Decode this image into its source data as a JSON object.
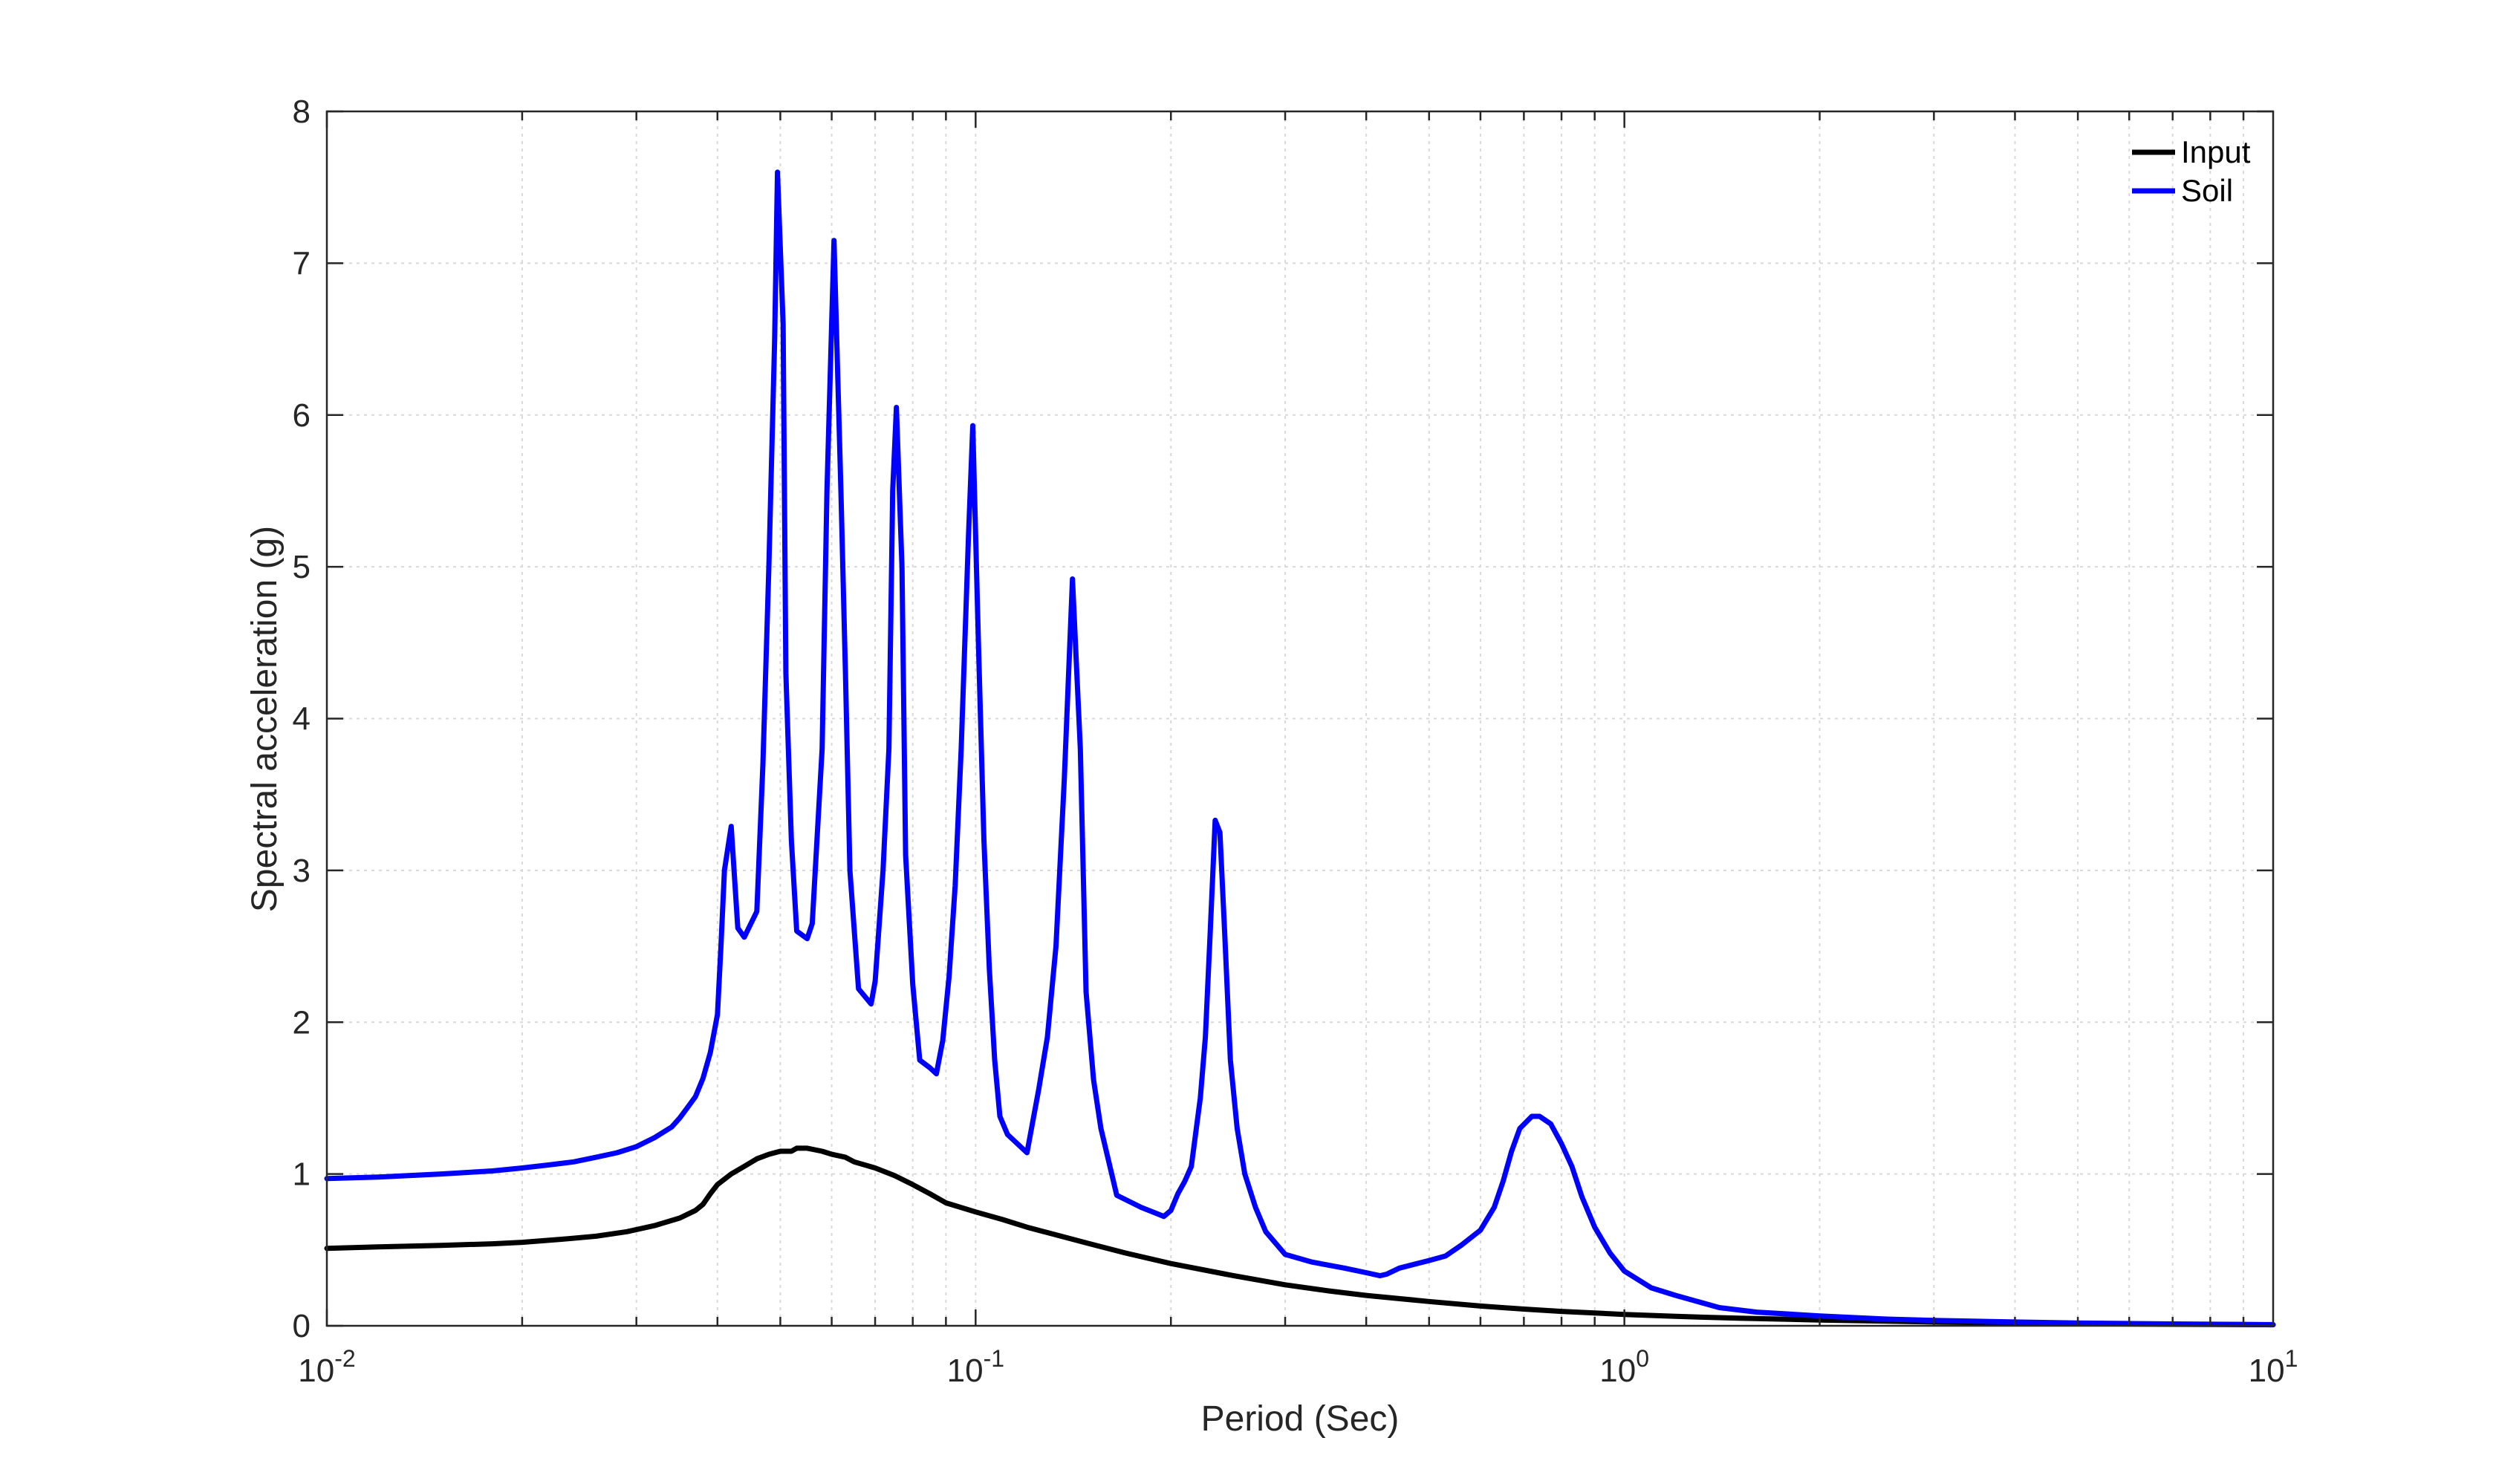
{
  "chart_data": {
    "type": "line",
    "title": "",
    "xlabel": "Period (Sec)",
    "ylabel": "Spectral acceleration (g)",
    "xscale": "log",
    "xlim": [
      0.01,
      10
    ],
    "ylim": [
      0,
      8
    ],
    "grid": true,
    "legend_position": "top-right",
    "x_ticks": [
      {
        "value": 0.01,
        "base": "10",
        "exp": "-2"
      },
      {
        "value": 0.1,
        "base": "10",
        "exp": "-1"
      },
      {
        "value": 1,
        "base": "10",
        "exp": "0"
      },
      {
        "value": 10,
        "base": "10",
        "exp": "1"
      }
    ],
    "y_ticks": [
      "0",
      "1",
      "2",
      "3",
      "4",
      "5",
      "6",
      "7",
      "8"
    ],
    "series": [
      {
        "name": "Input",
        "color": "#000000",
        "points": [
          [
            0.01,
            0.51
          ],
          [
            0.012,
            0.52
          ],
          [
            0.015,
            0.53
          ],
          [
            0.018,
            0.54
          ],
          [
            0.02,
            0.55
          ],
          [
            0.023,
            0.57
          ],
          [
            0.026,
            0.59
          ],
          [
            0.029,
            0.62
          ],
          [
            0.032,
            0.66
          ],
          [
            0.035,
            0.71
          ],
          [
            0.037,
            0.76
          ],
          [
            0.038,
            0.8
          ],
          [
            0.039,
            0.87
          ],
          [
            0.04,
            0.93
          ],
          [
            0.042,
            1.0
          ],
          [
            0.044,
            1.05
          ],
          [
            0.046,
            1.1
          ],
          [
            0.048,
            1.13
          ],
          [
            0.05,
            1.15
          ],
          [
            0.052,
            1.15
          ],
          [
            0.053,
            1.17
          ],
          [
            0.055,
            1.17
          ],
          [
            0.058,
            1.15
          ],
          [
            0.06,
            1.13
          ],
          [
            0.063,
            1.11
          ],
          [
            0.065,
            1.08
          ],
          [
            0.07,
            1.04
          ],
          [
            0.075,
            0.99
          ],
          [
            0.08,
            0.93
          ],
          [
            0.085,
            0.87
          ],
          [
            0.09,
            0.81
          ],
          [
            0.1,
            0.75
          ],
          [
            0.11,
            0.7
          ],
          [
            0.12,
            0.65
          ],
          [
            0.13,
            0.61
          ],
          [
            0.15,
            0.54
          ],
          [
            0.17,
            0.48
          ],
          [
            0.2,
            0.41
          ],
          [
            0.25,
            0.33
          ],
          [
            0.3,
            0.27
          ],
          [
            0.35,
            0.23
          ],
          [
            0.4,
            0.2
          ],
          [
            0.5,
            0.16
          ],
          [
            0.6,
            0.13
          ],
          [
            0.7,
            0.11
          ],
          [
            0.8,
            0.095
          ],
          [
            1.0,
            0.075
          ],
          [
            1.2,
            0.062
          ],
          [
            1.5,
            0.05
          ],
          [
            2.0,
            0.038
          ],
          [
            3.0,
            0.025
          ],
          [
            4.0,
            0.018
          ],
          [
            5.0,
            0.014
          ],
          [
            7.0,
            0.01
          ],
          [
            10.0,
            0.007
          ]
        ]
      },
      {
        "name": "Soil",
        "color": "#0000ff",
        "points": [
          [
            0.01,
            0.97
          ],
          [
            0.012,
            0.98
          ],
          [
            0.015,
            1.0
          ],
          [
            0.018,
            1.02
          ],
          [
            0.02,
            1.04
          ],
          [
            0.022,
            1.06
          ],
          [
            0.024,
            1.08
          ],
          [
            0.026,
            1.11
          ],
          [
            0.028,
            1.14
          ],
          [
            0.03,
            1.18
          ],
          [
            0.032,
            1.24
          ],
          [
            0.034,
            1.31
          ],
          [
            0.035,
            1.37
          ],
          [
            0.036,
            1.44
          ],
          [
            0.037,
            1.51
          ],
          [
            0.038,
            1.63
          ],
          [
            0.039,
            1.8
          ],
          [
            0.04,
            2.05
          ],
          [
            0.0405,
            2.5
          ],
          [
            0.041,
            3.0
          ],
          [
            0.042,
            3.29
          ],
          [
            0.043,
            2.62
          ],
          [
            0.044,
            2.56
          ],
          [
            0.046,
            2.73
          ],
          [
            0.047,
            3.7
          ],
          [
            0.048,
            5.0
          ],
          [
            0.049,
            6.5
          ],
          [
            0.0495,
            7.6
          ],
          [
            0.0505,
            6.6
          ],
          [
            0.051,
            4.3
          ],
          [
            0.052,
            3.2
          ],
          [
            0.053,
            2.6
          ],
          [
            0.055,
            2.55
          ],
          [
            0.056,
            2.65
          ],
          [
            0.058,
            3.8
          ],
          [
            0.059,
            5.5
          ],
          [
            0.0605,
            7.15
          ],
          [
            0.062,
            5.5
          ],
          [
            0.063,
            4.3
          ],
          [
            0.064,
            3.0
          ],
          [
            0.066,
            2.22
          ],
          [
            0.069,
            2.12
          ],
          [
            0.07,
            2.27
          ],
          [
            0.072,
            3.0
          ],
          [
            0.0735,
            3.8
          ],
          [
            0.0745,
            5.5
          ],
          [
            0.0755,
            6.05
          ],
          [
            0.077,
            5.0
          ],
          [
            0.078,
            3.1
          ],
          [
            0.08,
            2.25
          ],
          [
            0.082,
            1.75
          ],
          [
            0.085,
            1.7
          ],
          [
            0.087,
            1.66
          ],
          [
            0.089,
            1.88
          ],
          [
            0.091,
            2.3
          ],
          [
            0.093,
            2.9
          ],
          [
            0.095,
            3.8
          ],
          [
            0.0975,
            5.2
          ],
          [
            0.099,
            5.93
          ],
          [
            0.101,
            4.5
          ],
          [
            0.103,
            3.2
          ],
          [
            0.105,
            2.35
          ],
          [
            0.107,
            1.75
          ],
          [
            0.109,
            1.38
          ],
          [
            0.112,
            1.26
          ],
          [
            0.12,
            1.14
          ],
          [
            0.125,
            1.55
          ],
          [
            0.129,
            1.9
          ],
          [
            0.133,
            2.5
          ],
          [
            0.137,
            3.6
          ],
          [
            0.141,
            4.92
          ],
          [
            0.145,
            3.8
          ],
          [
            0.148,
            2.2
          ],
          [
            0.152,
            1.62
          ],
          [
            0.156,
            1.3
          ],
          [
            0.165,
            0.86
          ],
          [
            0.18,
            0.78
          ],
          [
            0.19,
            0.74
          ],
          [
            0.195,
            0.72
          ],
          [
            0.2,
            0.76
          ],
          [
            0.205,
            0.87
          ],
          [
            0.21,
            0.95
          ],
          [
            0.215,
            1.05
          ],
          [
            0.222,
            1.5
          ],
          [
            0.226,
            1.9
          ],
          [
            0.23,
            2.6
          ],
          [
            0.234,
            3.33
          ],
          [
            0.238,
            3.25
          ],
          [
            0.242,
            2.6
          ],
          [
            0.247,
            1.75
          ],
          [
            0.253,
            1.3
          ],
          [
            0.26,
            1.0
          ],
          [
            0.27,
            0.78
          ],
          [
            0.28,
            0.62
          ],
          [
            0.3,
            0.47
          ],
          [
            0.33,
            0.42
          ],
          [
            0.37,
            0.38
          ],
          [
            0.4,
            0.35
          ],
          [
            0.42,
            0.33
          ],
          [
            0.43,
            0.34
          ],
          [
            0.45,
            0.38
          ],
          [
            0.5,
            0.43
          ],
          [
            0.53,
            0.46
          ],
          [
            0.56,
            0.53
          ],
          [
            0.6,
            0.63
          ],
          [
            0.63,
            0.78
          ],
          [
            0.65,
            0.95
          ],
          [
            0.67,
            1.15
          ],
          [
            0.69,
            1.3
          ],
          [
            0.72,
            1.38
          ],
          [
            0.74,
            1.38
          ],
          [
            0.77,
            1.33
          ],
          [
            0.8,
            1.2
          ],
          [
            0.83,
            1.05
          ],
          [
            0.86,
            0.85
          ],
          [
            0.9,
            0.65
          ],
          [
            0.95,
            0.48
          ],
          [
            1.0,
            0.36
          ],
          [
            1.1,
            0.25
          ],
          [
            1.2,
            0.2
          ],
          [
            1.4,
            0.12
          ],
          [
            1.6,
            0.09
          ],
          [
            2.0,
            0.065
          ],
          [
            2.5,
            0.045
          ],
          [
            3.0,
            0.035
          ],
          [
            4.0,
            0.025
          ],
          [
            5.0,
            0.018
          ],
          [
            7.0,
            0.012
          ],
          [
            10.0,
            0.008
          ]
        ]
      }
    ]
  }
}
